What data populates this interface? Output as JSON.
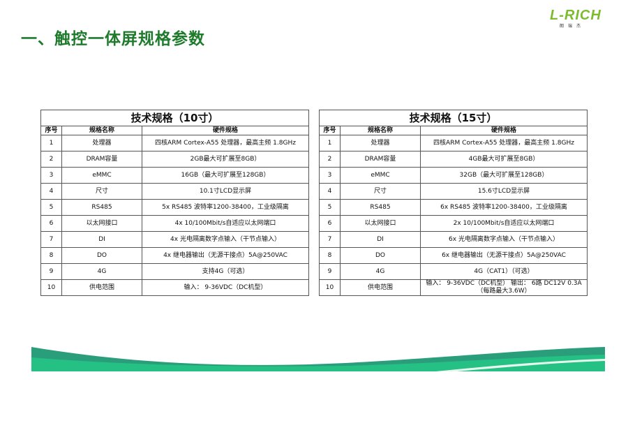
{
  "page_title": "一、触控一体屏规格参数",
  "logo": {
    "mark": "L-RICH",
    "sub": "朗瑞杰"
  },
  "colors": {
    "title": "#1e7b2c",
    "logo": "#7dbb2f",
    "wave_dark": "#2a9e7a",
    "wave_light": "#25c083"
  },
  "tables": [
    {
      "caption": "技术规格（10寸）",
      "headers": [
        "序号",
        "规格名称",
        "硬件规格"
      ],
      "rows": [
        [
          "1",
          "处理器",
          "四核ARM Cortex-A55 处理器，最高主频 1.8GHz"
        ],
        [
          "2",
          "DRAM容量",
          "2GB最大可扩展至8GB）"
        ],
        [
          "3",
          "eMMC",
          "16GB（最大可扩展至128GB）"
        ],
        [
          "4",
          "尺寸",
          "10.1寸LCD显示屏"
        ],
        [
          "5",
          "RS485",
          "5x RS485 波特率1200-38400，工业级隔离"
        ],
        [
          "6",
          "以太网接口",
          "4x 10/100Mbit/s自适应以太网端口"
        ],
        [
          "7",
          "DI",
          "4x 光电隔离数字点输入（干节点输入）"
        ],
        [
          "8",
          "DO",
          "4x 继电器输出（无源干接点）5A@250VAC"
        ],
        [
          "9",
          "4G",
          "支持4G（可选）"
        ],
        [
          "10",
          "供电范围",
          "输入： 9-36VDC（DC机型）"
        ]
      ]
    },
    {
      "caption": "技术规格（15寸）",
      "headers": [
        "序号",
        "规格名称",
        "硬件规格"
      ],
      "rows": [
        [
          "1",
          "处理器",
          "四核ARM Cortex-A55 处理器，最高主频 1.8GHz"
        ],
        [
          "2",
          "DRAM容量",
          "4GB最大可扩展至8GB）"
        ],
        [
          "3",
          "eMMC",
          "32GB（最大可扩展至128GB）"
        ],
        [
          "4",
          "尺寸",
          "15.6寸LCD显示屏"
        ],
        [
          "5",
          "RS485",
          "6x RS485 波特率1200-38400，工业级隔离"
        ],
        [
          "6",
          "以太网接口",
          "2x 10/100Mbit/s自适应以太网端口"
        ],
        [
          "7",
          "DI",
          "6x 光电隔离数字点输入（干节点输入）"
        ],
        [
          "8",
          "DO",
          "6x 继电器输出（无源干接点）5A@250VAC"
        ],
        [
          "9",
          "4G",
          "4G（CAT1）（可选）"
        ],
        [
          "10",
          "供电范围",
          "输入： 9-36VDC（DC机型） 输出： 6路 DC12V 0.3A（每路最大3.6W）"
        ]
      ]
    }
  ]
}
